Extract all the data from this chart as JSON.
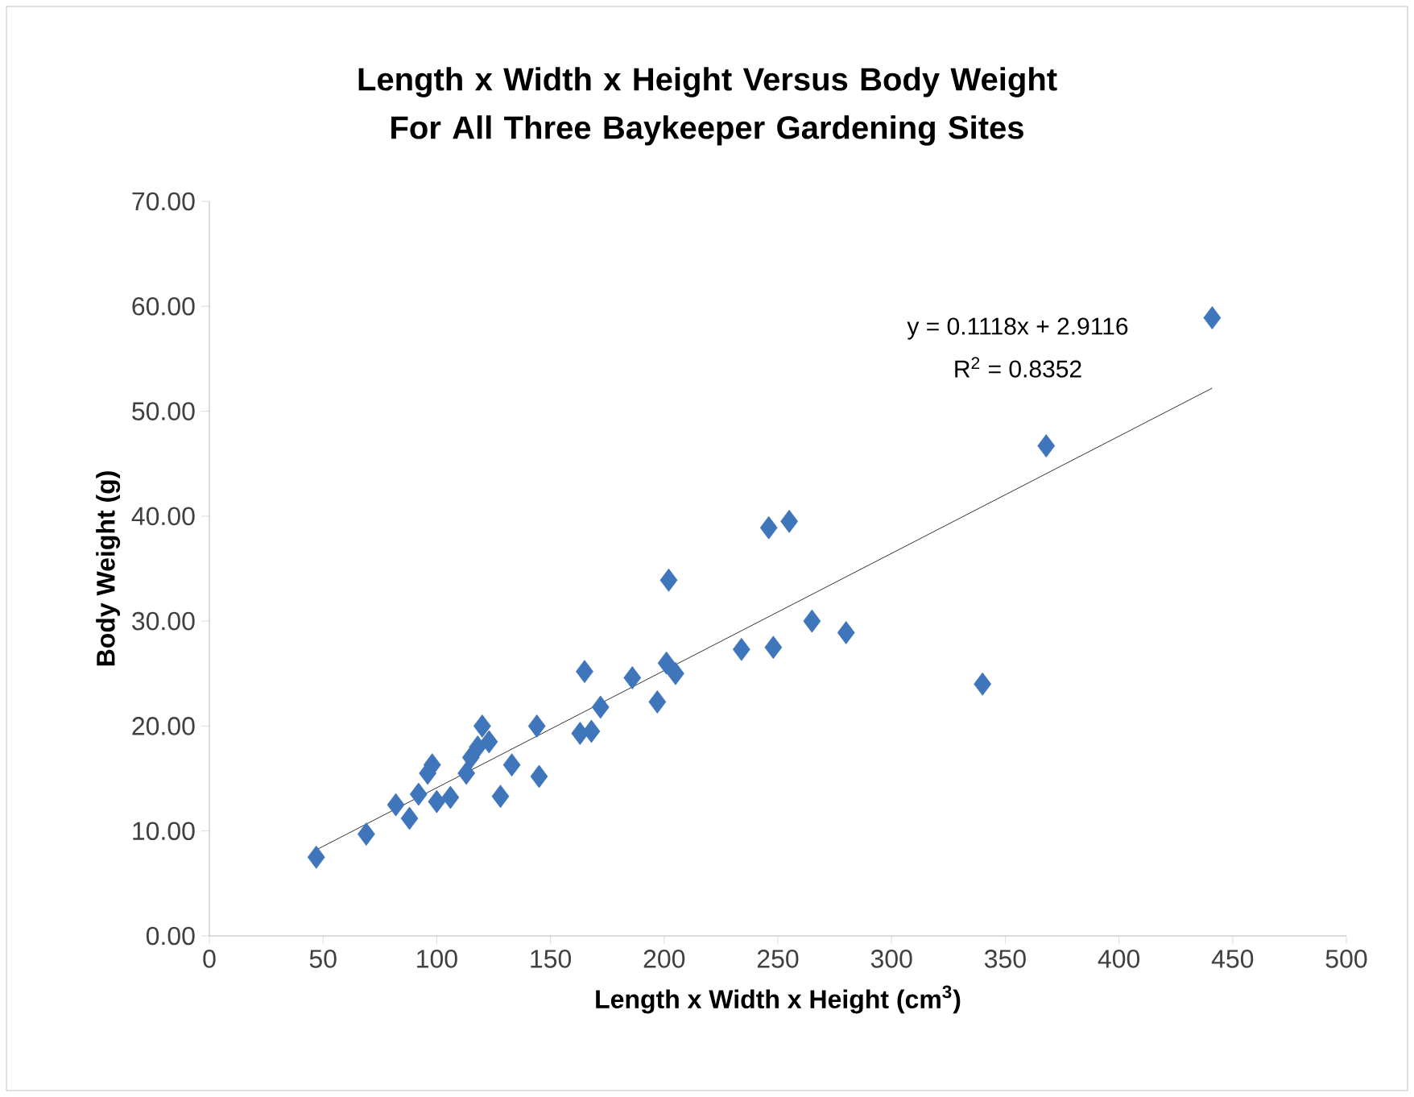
{
  "chart_data": {
    "type": "scatter",
    "title": "Length x Width x Height Versus Body Weight For All Three Baykeeper Gardening Sites",
    "xlabel": "Length x Width x Height (cm$^{3}$)",
    "ylabel": "Body Weight (g)",
    "xlim": [
      0,
      500
    ],
    "xticks": [
      0,
      50,
      100,
      150,
      200,
      250,
      300,
      350,
      400,
      450,
      500
    ],
    "ylim": [
      0,
      70
    ],
    "yticks": [
      {
        "value": 0,
        "label": "0.00"
      },
      {
        "value": 10,
        "label": "10.00"
      },
      {
        "value": 20,
        "label": "20.00"
      },
      {
        "value": 30,
        "label": "30.00"
      },
      {
        "value": 40,
        "label": "40.00"
      },
      {
        "value": 50,
        "label": "50.00"
      },
      {
        "value": 60,
        "label": "60.00"
      },
      {
        "value": 70,
        "label": "70.00"
      }
    ],
    "grid": false,
    "marker": "diamond",
    "annotations": [
      "y = 0.1118x + 2.9116",
      "R$^{2}$ = 0.8352"
    ],
    "series": [
      {
        "color": "#3f75ba",
        "x": [
          47,
          69,
          82,
          88,
          92,
          96,
          98,
          100,
          106,
          113,
          115,
          118,
          120,
          123,
          128,
          133,
          144,
          145,
          163,
          165,
          168,
          172,
          186,
          197,
          201,
          202,
          205,
          234,
          246,
          248,
          255,
          265,
          280,
          340,
          368,
          441
        ],
        "values": [
          7.5,
          9.7,
          12.5,
          11.2,
          13.5,
          15.5,
          16.3,
          12.8,
          13.2,
          15.5,
          17,
          18,
          20,
          18.5,
          13.3,
          16.3,
          20,
          15.2,
          19.3,
          25.2,
          19.5,
          21.8,
          24.6,
          22.3,
          26,
          33.9,
          25,
          27.3,
          38.9,
          27.5,
          39.5,
          30,
          28.9,
          24,
          46.7,
          58.9
        ]
      },
      {
        "type": "line",
        "marker": "none",
        "color": "#000000",
        "line_style": "solid",
        "x": [
          47,
          441
        ],
        "values": [
          8.2,
          52.2
        ]
      }
    ]
  }
}
